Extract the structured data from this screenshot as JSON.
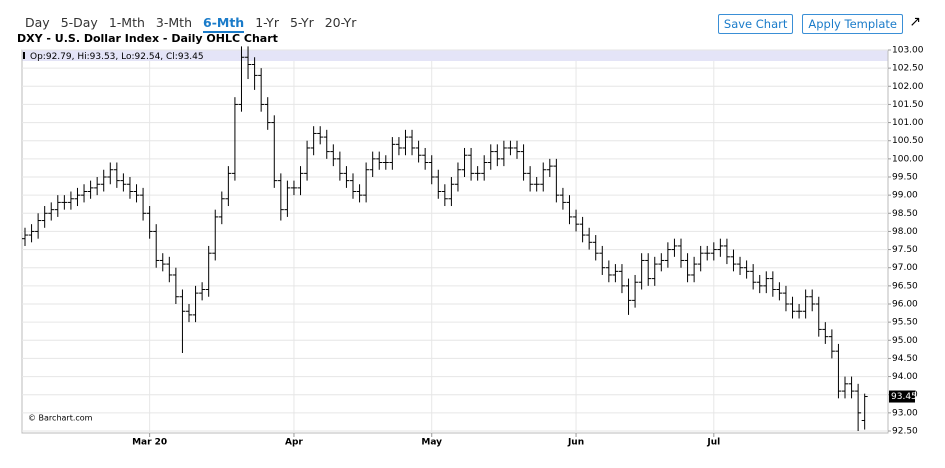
{
  "toolbar": {
    "periods": [
      "Day",
      "5-Day",
      "1-Mth",
      "3-Mth",
      "6-Mth",
      "1-Yr",
      "5-Yr",
      "20-Yr"
    ],
    "active_period": 4,
    "buttons": [
      "Save Chart",
      "Apply Template"
    ]
  },
  "chart_data": {
    "type": "ohlc",
    "title": "DXY - U.S. Dollar Index - Daily OHLC Chart",
    "ohlc_labels": [
      "Op:",
      ", Hi:",
      ", Lo:",
      ", Cl:"
    ],
    "source": "© Barchart.com",
    "color": "#000000",
    "grid": true,
    "categories": [
      null,
      null,
      null,
      null,
      null,
      null,
      null,
      null,
      null,
      null,
      null,
      null,
      null,
      null,
      null,
      null,
      null,
      null,
      null,
      "Mar 20",
      null,
      null,
      null,
      null,
      null,
      null,
      null,
      null,
      null,
      null,
      null,
      null,
      null,
      null,
      null,
      null,
      null,
      null,
      null,
      null,
      null,
      "Apr",
      null,
      null,
      null,
      null,
      null,
      null,
      null,
      null,
      null,
      null,
      null,
      null,
      null,
      null,
      null,
      null,
      null,
      null,
      null,
      null,
      "May",
      null,
      null,
      null,
      null,
      null,
      null,
      null,
      null,
      null,
      null,
      null,
      null,
      null,
      null,
      null,
      null,
      null,
      null,
      null,
      null,
      null,
      "Jun",
      null,
      null,
      null,
      null,
      null,
      null,
      null,
      null,
      null,
      null,
      null,
      null,
      null,
      null,
      null,
      null,
      null,
      null,
      null,
      null,
      "Jul",
      null,
      null,
      null,
      null,
      null,
      null,
      null,
      null,
      null,
      null,
      null,
      null,
      null,
      null,
      null,
      null,
      null,
      null,
      null,
      null,
      null,
      null,
      null
    ],
    "open": [
      97.8,
      97.9,
      98.0,
      98.3,
      98.5,
      98.6,
      98.8,
      98.8,
      98.9,
      99.0,
      99.1,
      99.2,
      99.3,
      99.5,
      99.7,
      99.4,
      99.3,
      99.1,
      99.0,
      98.5,
      98.0,
      97.2,
      97.1,
      96.8,
      96.2,
      95.8,
      95.7,
      96.3,
      96.4,
      97.4,
      98.4,
      98.9,
      99.6,
      101.5,
      102.8,
      102.6,
      102.3,
      101.5,
      101.0,
      99.4,
      98.6,
      99.2,
      99.2,
      99.6,
      100.3,
      100.7,
      100.6,
      100.2,
      100.0,
      99.6,
      99.4,
      99.1,
      99.0,
      99.7,
      100.0,
      99.9,
      99.9,
      100.4,
      100.3,
      100.6,
      100.3,
      100.1,
      99.9,
      99.5,
      99.1,
      98.9,
      99.3,
      99.7,
      100.1,
      99.6,
      99.6,
      99.9,
      100.2,
      100.0,
      100.3,
      100.3,
      100.2,
      99.6,
      99.3,
      99.3,
      99.7,
      99.8,
      99.0,
      98.8,
      98.4,
      98.2,
      97.9,
      97.7,
      97.4,
      97.0,
      96.8,
      96.9,
      96.5,
      96.1,
      96.6,
      97.2,
      96.7,
      97.1,
      97.2,
      97.5,
      97.6,
      97.2,
      96.8,
      97.1,
      97.4,
      97.4,
      97.5,
      97.6,
      97.3,
      97.1,
      97.0,
      96.9,
      96.6,
      96.5,
      96.7,
      96.4,
      96.3,
      96.0,
      95.8,
      95.8,
      96.2,
      96.0,
      95.3,
      95.1,
      94.7,
      93.6,
      93.8,
      93.6,
      92.79
    ],
    "high": [
      98.1,
      98.2,
      98.5,
      98.7,
      98.8,
      99.0,
      99.0,
      99.1,
      99.2,
      99.3,
      99.4,
      99.5,
      99.7,
      99.9,
      99.9,
      99.6,
      99.5,
      99.3,
      99.2,
      98.7,
      98.2,
      97.4,
      97.3,
      97.0,
      96.4,
      96.0,
      96.5,
      96.6,
      97.6,
      98.6,
      99.1,
      99.8,
      101.7,
      103.1,
      103.1,
      102.8,
      102.5,
      101.7,
      101.2,
      99.6,
      99.4,
      99.4,
      99.8,
      100.5,
      100.9,
      100.9,
      100.8,
      100.4,
      100.2,
      99.8,
      99.6,
      99.3,
      99.9,
      100.2,
      100.2,
      100.1,
      100.6,
      100.6,
      100.8,
      100.8,
      100.5,
      100.3,
      100.1,
      99.7,
      99.3,
      99.5,
      99.9,
      100.3,
      100.3,
      99.8,
      100.1,
      100.4,
      100.4,
      100.5,
      100.5,
      100.5,
      100.4,
      99.8,
      99.5,
      99.9,
      100.0,
      100.0,
      99.2,
      99.0,
      98.6,
      98.4,
      98.1,
      97.9,
      97.6,
      97.2,
      97.1,
      97.1,
      96.7,
      96.8,
      97.4,
      97.4,
      97.3,
      97.4,
      97.7,
      97.8,
      97.8,
      97.4,
      97.3,
      97.6,
      97.6,
      97.7,
      97.8,
      97.8,
      97.5,
      97.3,
      97.2,
      97.1,
      96.8,
      96.9,
      96.9,
      96.6,
      96.5,
      96.2,
      96.0,
      96.4,
      96.4,
      96.2,
      95.5,
      95.3,
      94.9,
      94.0,
      94.0,
      93.8,
      93.53
    ],
    "low": [
      97.6,
      97.7,
      97.8,
      98.1,
      98.3,
      98.4,
      98.6,
      98.6,
      98.7,
      98.8,
      98.9,
      99.0,
      99.1,
      99.3,
      99.2,
      99.1,
      98.9,
      98.8,
      98.3,
      97.8,
      97.0,
      96.9,
      96.6,
      96.0,
      94.65,
      95.5,
      95.5,
      96.1,
      96.2,
      97.2,
      98.2,
      98.7,
      99.4,
      101.3,
      102.2,
      101.9,
      101.3,
      100.8,
      99.2,
      98.3,
      98.4,
      99.0,
      99.0,
      99.4,
      100.1,
      100.4,
      100.0,
      99.8,
      99.4,
      99.2,
      98.9,
      98.8,
      98.8,
      99.5,
      99.7,
      99.7,
      99.7,
      100.1,
      100.1,
      100.1,
      99.9,
      99.7,
      99.3,
      98.9,
      98.7,
      98.7,
      99.1,
      99.5,
      99.4,
      99.4,
      99.4,
      99.7,
      99.8,
      99.8,
      100.1,
      100.0,
      99.4,
      99.1,
      99.1,
      99.1,
      99.5,
      98.8,
      98.6,
      98.2,
      98.0,
      97.7,
      97.5,
      97.2,
      96.8,
      96.6,
      96.6,
      96.3,
      95.7,
      95.9,
      96.4,
      96.5,
      96.5,
      96.9,
      97.0,
      97.3,
      97.0,
      96.6,
      96.6,
      96.9,
      97.2,
      97.2,
      97.3,
      97.1,
      96.9,
      96.8,
      96.7,
      96.4,
      96.3,
      96.3,
      96.2,
      96.1,
      95.8,
      95.6,
      95.6,
      95.6,
      95.8,
      95.1,
      94.9,
      94.5,
      93.4,
      93.4,
      93.4,
      92.5,
      92.54
    ],
    "close": [
      97.9,
      98.0,
      98.3,
      98.5,
      98.6,
      98.8,
      98.8,
      98.9,
      99.0,
      99.1,
      99.2,
      99.3,
      99.5,
      99.7,
      99.4,
      99.3,
      99.1,
      99.0,
      98.5,
      98.0,
      97.2,
      97.1,
      96.8,
      96.2,
      95.8,
      95.7,
      96.3,
      96.4,
      97.4,
      98.4,
      98.9,
      99.6,
      101.5,
      102.8,
      102.6,
      102.3,
      101.5,
      101.0,
      99.4,
      98.6,
      99.2,
      99.2,
      99.6,
      100.3,
      100.7,
      100.6,
      100.2,
      100.0,
      99.6,
      99.4,
      99.1,
      99.0,
      99.7,
      100.0,
      99.9,
      99.9,
      100.4,
      100.3,
      100.6,
      100.3,
      100.1,
      99.9,
      99.5,
      99.1,
      98.9,
      99.3,
      99.7,
      100.1,
      99.6,
      99.6,
      99.9,
      100.2,
      100.0,
      100.3,
      100.3,
      100.2,
      99.6,
      99.3,
      99.3,
      99.7,
      99.8,
      99.0,
      98.8,
      98.4,
      98.2,
      97.9,
      97.7,
      97.4,
      97.0,
      96.8,
      96.9,
      96.5,
      96.1,
      96.6,
      97.2,
      96.7,
      97.1,
      97.2,
      97.5,
      97.6,
      97.2,
      96.8,
      97.1,
      97.4,
      97.4,
      97.5,
      97.6,
      97.3,
      97.1,
      97.0,
      96.9,
      96.6,
      96.5,
      96.7,
      96.4,
      96.3,
      96.0,
      95.8,
      95.8,
      96.2,
      96.0,
      95.3,
      95.1,
      94.7,
      93.6,
      93.8,
      93.6,
      93.0,
      93.45
    ],
    "ylim": [
      92.5,
      103
    ],
    "yticks": [
      {
        "value": 92.5,
        "label": "92.50"
      },
      {
        "value": 93,
        "label": "93.00"
      },
      {
        "value": 93.5,
        "label": "93.50"
      },
      {
        "value": 94,
        "label": "94.00"
      },
      {
        "value": 94.5,
        "label": "94.50"
      },
      {
        "value": 95,
        "label": "95.00"
      },
      {
        "value": 95.5,
        "label": "95.50"
      },
      {
        "value": 96,
        "label": "96.00"
      },
      {
        "value": 96.5,
        "label": "96.50"
      },
      {
        "value": 97,
        "label": "97.00"
      },
      {
        "value": 97.5,
        "label": "97.50"
      },
      {
        "value": 98,
        "label": "98.00"
      },
      {
        "value": 98.5,
        "label": "98.50"
      },
      {
        "value": 99,
        "label": "99.00"
      },
      {
        "value": 99.5,
        "label": "99.50"
      },
      {
        "value": 100,
        "label": "100.00"
      },
      {
        "value": 100.5,
        "label": "100.50"
      },
      {
        "value": 101,
        "label": "101.00"
      },
      {
        "value": 101.5,
        "label": "101.50"
      },
      {
        "value": 102,
        "label": "102.00"
      },
      {
        "value": 102.5,
        "label": "102.50"
      },
      {
        "value": 103,
        "label": "103.00"
      }
    ]
  }
}
